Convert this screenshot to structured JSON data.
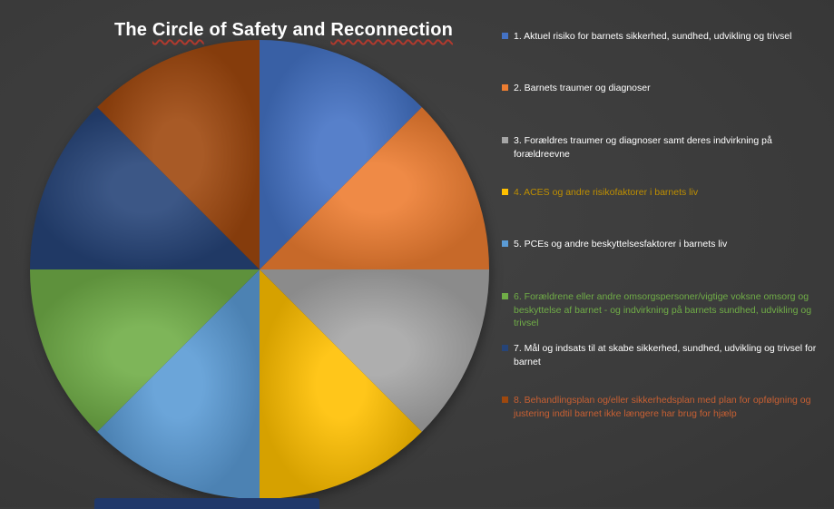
{
  "title": {
    "part1": "The ",
    "part2": "Circle",
    "part3": " of Safety and ",
    "part4": "Reconnection"
  },
  "colors": {
    "background": "#3b3b3b",
    "title_text": "#ffffff",
    "spellcheck_underline": "#b03a2e",
    "bottom_bar": "#20386a"
  },
  "chart_data": {
    "type": "pie",
    "title": "The Circle of Safety and Reconnection",
    "legend_position": "right",
    "start_angle_deg": 0,
    "direction": "clockwise",
    "slices": [
      {
        "label": "1. Aktuel risiko for barnets sikkerhed, sundhed, udvikling og trivsel",
        "value": 12.5,
        "color": "#4472C4",
        "text_color": "#FFFFFF"
      },
      {
        "label": "2. Barnets traumer og diagnoser",
        "value": 12.5,
        "color": "#ED7D31",
        "text_color": "#FFFFFF"
      },
      {
        "label": "3. Forældres traumer og diagnoser samt deres indvirkning på forældreevne",
        "value": 12.5,
        "color": "#A5A5A5",
        "text_color": "#FFFFFF"
      },
      {
        "label": "4. ACES og andre risikofaktorer i barnets liv",
        "value": 12.5,
        "color": "#FFC000",
        "text_color": "#BF8F00"
      },
      {
        "label": "5. PCEs og andre beskyttelsesfaktorer i barnets liv",
        "value": 12.5,
        "color": "#5B9BD5",
        "text_color": "#FFFFFF"
      },
      {
        "label": "6. Forældrene eller andre omsorgspersoner/vigtige voksne omsorg og beskyttelse af barnet - og indvirkning på barnets sundhed, udvikling og trivsel",
        "value": 12.5,
        "color": "#70AD47",
        "text_color": "#70AD47"
      },
      {
        "label": "7. Mål og indsats til at skabe sikkerhed, sundhed, udvikling og trivsel for barnet",
        "value": 12.5,
        "color": "#264478",
        "text_color": "#FFFFFF"
      },
      {
        "label": "8. Behandlingsplan og/eller sikkerhedsplan med plan for opfølgning og justering indtil barnet ikke længere har brug for hjælp",
        "value": 12.5,
        "color": "#9E480E",
        "text_color": "#C86033"
      }
    ]
  }
}
